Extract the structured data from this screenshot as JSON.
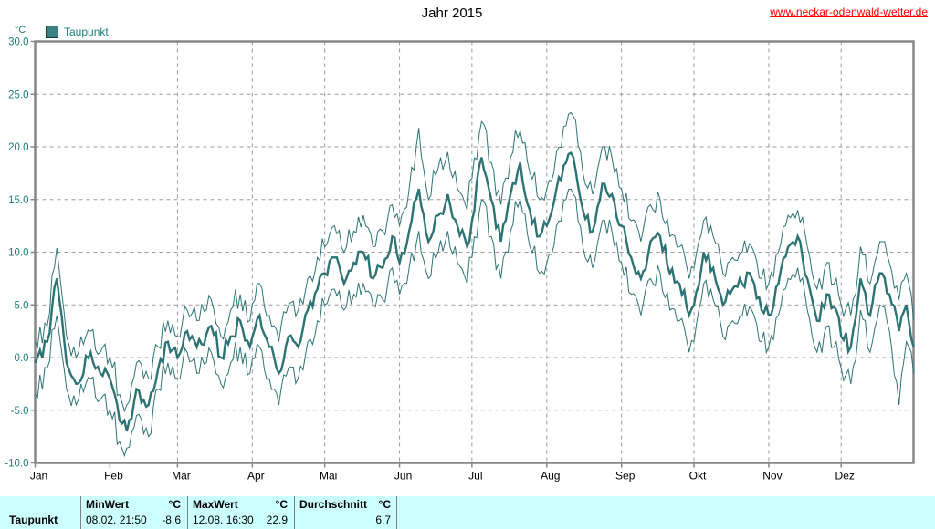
{
  "header": {
    "title": "Jahr 2015",
    "site_link": "www.neckar-odenwald-wetter.de"
  },
  "colors": {
    "line": "#2E7373",
    "legend_fill": "#3D8282",
    "axis_text_teal": "#1B7E7E",
    "grid": "#9B9B9B",
    "plot_border": "#878787",
    "month_text": "#000000",
    "link": "#FF0000",
    "table_background": "#CCFFFF",
    "table_divider": "#808080"
  },
  "chart_data": {
    "type": "line",
    "title": "Jahr 2015",
    "xlabel": "",
    "ylabel": "°C",
    "ylim": [
      -10,
      30
    ],
    "ytick_step": 5,
    "ytick_labels": [
      "30.0",
      "25.0",
      "20.0",
      "15.0",
      "10.0",
      "5.0",
      "0.0",
      "-5.0",
      "-10.0"
    ],
    "grid": true,
    "grid_style": "dashed",
    "legend_position": "top-left",
    "legend": [
      {
        "label": "Taupunkt",
        "color": "#2E7373"
      }
    ],
    "x_months": [
      {
        "label": "Jan",
        "start_day": 1
      },
      {
        "label": "Feb",
        "start_day": 32
      },
      {
        "label": "Mär",
        "start_day": 60
      },
      {
        "label": "Apr",
        "start_day": 91
      },
      {
        "label": "Mai",
        "start_day": 121
      },
      {
        "label": "Jun",
        "start_day": 152
      },
      {
        "label": "Jul",
        "start_day": 182
      },
      {
        "label": "Aug",
        "start_day": 213
      },
      {
        "label": "Sep",
        "start_day": 244
      },
      {
        "label": "Okt",
        "start_day": 274
      },
      {
        "label": "Nov",
        "start_day": 305
      },
      {
        "label": "Dez",
        "start_day": 335
      }
    ],
    "x_total_days": 365,
    "anchor_days": [
      1,
      6,
      10,
      14,
      18,
      24,
      28,
      32,
      36,
      39,
      43,
      48,
      52,
      56,
      60,
      64,
      68,
      74,
      78,
      82,
      86,
      90,
      94,
      98,
      102,
      106,
      110,
      114,
      118,
      121,
      125,
      129,
      133,
      137,
      141,
      145,
      149,
      152,
      156,
      160,
      164,
      168,
      172,
      176,
      180,
      182,
      186,
      190,
      194,
      198,
      202,
      206,
      210,
      213,
      217,
      221,
      224,
      228,
      232,
      236,
      240,
      244,
      248,
      252,
      256,
      260,
      264,
      268,
      272,
      274,
      278,
      282,
      286,
      290,
      294,
      298,
      302,
      305,
      309,
      313,
      317,
      321,
      325,
      329,
      333,
      335,
      339,
      343,
      347,
      351,
      355,
      359,
      362,
      365
    ],
    "series": [
      {
        "name": "Taupunkt Mittel",
        "role": "mean",
        "width": "thick",
        "values": [
          -0.5,
          1.5,
          7.5,
          -0.5,
          -2.5,
          0.5,
          -1.5,
          -2.0,
          -6.0,
          -7.0,
          -3.0,
          -4.5,
          -1.0,
          1.5,
          0.0,
          2.5,
          1.0,
          3.0,
          0.0,
          2.0,
          3.5,
          1.0,
          4.0,
          1.0,
          -1.5,
          2.0,
          1.0,
          4.5,
          6.5,
          8.0,
          9.5,
          7.0,
          9.0,
          10.0,
          7.5,
          8.5,
          11.5,
          9.0,
          12.0,
          16.0,
          11.0,
          13.5,
          15.5,
          12.5,
          10.5,
          13.0,
          19.0,
          15.0,
          11.0,
          15.5,
          18.5,
          14.0,
          11.5,
          12.5,
          16.0,
          18.5,
          19.0,
          14.0,
          12.0,
          16.5,
          15.5,
          12.5,
          9.5,
          7.5,
          11.0,
          11.5,
          8.0,
          7.0,
          4.0,
          5.0,
          10.0,
          8.5,
          5.0,
          6.5,
          7.0,
          7.5,
          4.5,
          4.0,
          7.0,
          10.5,
          11.5,
          7.5,
          3.5,
          6.0,
          4.5,
          2.0,
          1.0,
          7.5,
          4.0,
          8.0,
          6.0,
          2.5,
          5.0,
          1.0
        ]
      },
      {
        "name": "Taupunkt Minimum",
        "role": "min",
        "width": "thin",
        "values": [
          -3.5,
          -1.0,
          4.0,
          -3.0,
          -4.5,
          -2.0,
          -4.0,
          -5.0,
          -8.0,
          -8.6,
          -5.5,
          -7.5,
          -3.0,
          -0.5,
          -2.0,
          0.5,
          -1.5,
          0.5,
          -2.5,
          -0.5,
          1.0,
          -1.5,
          1.0,
          -2.0,
          -4.5,
          -1.0,
          -2.0,
          1.5,
          3.5,
          5.0,
          6.5,
          4.5,
          6.0,
          7.0,
          5.0,
          5.5,
          8.5,
          6.0,
          8.5,
          12.0,
          7.5,
          10.0,
          12.0,
          9.0,
          7.0,
          9.5,
          15.0,
          11.5,
          7.5,
          12.0,
          15.0,
          10.5,
          8.0,
          9.0,
          12.5,
          15.0,
          15.5,
          10.5,
          8.5,
          13.0,
          12.0,
          9.0,
          6.0,
          4.0,
          7.5,
          8.0,
          4.5,
          3.5,
          0.5,
          1.5,
          7.0,
          5.5,
          2.0,
          3.5,
          4.0,
          4.5,
          1.5,
          1.0,
          4.0,
          7.5,
          8.5,
          4.5,
          0.5,
          3.0,
          1.5,
          -1.0,
          -2.5,
          4.5,
          0.5,
          5.0,
          2.5,
          -4.5,
          1.5,
          -1.5
        ]
      },
      {
        "name": "Taupunkt Maximum",
        "role": "max",
        "width": "thin",
        "values": [
          1.5,
          3.0,
          10.4,
          2.0,
          0.0,
          2.5,
          0.5,
          0.0,
          -3.5,
          -4.5,
          -0.5,
          -2.0,
          1.0,
          3.5,
          2.0,
          4.5,
          3.5,
          5.5,
          2.0,
          4.5,
          6.0,
          3.5,
          7.0,
          4.0,
          1.5,
          5.0,
          4.5,
          7.5,
          9.5,
          10.5,
          12.5,
          10.0,
          12.0,
          13.5,
          10.5,
          12.0,
          14.5,
          12.5,
          16.0,
          21.8,
          15.0,
          18.0,
          19.5,
          16.0,
          14.0,
          17.0,
          22.4,
          18.5,
          14.5,
          19.0,
          21.5,
          17.5,
          15.0,
          16.0,
          19.5,
          22.0,
          22.9,
          17.5,
          15.5,
          20.0,
          19.0,
          16.0,
          13.0,
          11.0,
          14.5,
          15.0,
          11.5,
          10.5,
          7.5,
          8.5,
          13.0,
          11.5,
          8.0,
          9.5,
          10.0,
          10.5,
          7.5,
          7.0,
          10.0,
          13.5,
          14.0,
          10.5,
          6.5,
          9.0,
          7.5,
          5.0,
          4.0,
          10.5,
          7.0,
          11.0,
          9.0,
          5.5,
          8.0,
          3.5
        ]
      }
    ],
    "noise": {
      "seed": 20150,
      "thick_amp": 0.9,
      "thin_amp": 1.35
    }
  },
  "stats_table": {
    "row_label": "Taupunkt",
    "min": {
      "title": "MinWert",
      "unit": "°C",
      "time": "08.02. 21:50",
      "value": "-8.6"
    },
    "max": {
      "title": "MaxWert",
      "unit": "°C",
      "time": "12.08. 16:30",
      "value": "22.9"
    },
    "avg": {
      "title": "Durchschnitt",
      "unit": "°C",
      "value": "6.7"
    }
  }
}
